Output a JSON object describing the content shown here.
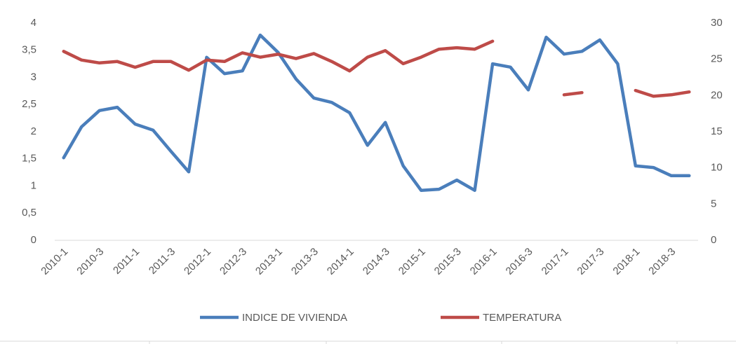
{
  "chart_data": {
    "type": "line",
    "categories": [
      "2010-1",
      null,
      "2010-3",
      null,
      "2011-1",
      null,
      "2011-3",
      null,
      "2012-1",
      null,
      "2012-3",
      null,
      "2013-1",
      null,
      "2013-3",
      null,
      "2014-1",
      null,
      "2014-3",
      null,
      "2015-1",
      null,
      "2015-3",
      null,
      "2016-1",
      null,
      "2016-3",
      null,
      "2017-1",
      null,
      "2017-3",
      null,
      "2018-1",
      null,
      "2018-3",
      null
    ],
    "series": [
      {
        "name": "INDICE DE VIVIENDA",
        "color": "#4a7ebb",
        "axis": "y",
        "values": [
          1.52,
          2.09,
          2.39,
          2.45,
          2.14,
          2.03,
          1.64,
          1.26,
          3.37,
          3.07,
          3.12,
          3.78,
          3.46,
          2.97,
          2.62,
          2.54,
          2.35,
          1.75,
          2.17,
          1.37,
          0.92,
          0.94,
          1.11,
          0.92,
          3.25,
          3.19,
          2.77,
          3.74,
          3.43,
          3.48,
          3.69,
          3.25,
          1.37,
          1.34,
          1.19,
          1.19
        ]
      },
      {
        "name": "TEMPERATURA",
        "color": "#be4b48",
        "axis": "y2",
        "values": [
          26.1,
          24.9,
          24.5,
          24.7,
          23.9,
          24.7,
          24.7,
          23.5,
          24.9,
          24.7,
          25.9,
          25.3,
          25.7,
          25.1,
          25.8,
          24.7,
          23.4,
          25.3,
          26.2,
          24.4,
          25.3,
          26.4,
          26.6,
          26.4,
          27.5,
          null,
          null,
          null,
          20.1,
          20.4,
          null,
          null,
          20.7,
          19.9,
          20.1,
          20.5
        ]
      }
    ],
    "ylim": [
      0,
      4
    ],
    "yticks": [
      0,
      {
        "value": 0.5,
        "label": "0,5"
      },
      1,
      {
        "value": 1.5,
        "label": "1,5"
      },
      2,
      {
        "value": 2.5,
        "label": "2,5"
      },
      3,
      {
        "value": 3.5,
        "label": "3,5"
      },
      4
    ],
    "y2lim": [
      0,
      30
    ],
    "y2ticks": [
      0,
      5,
      10,
      15,
      20,
      25,
      30
    ],
    "grid": false,
    "legend": "bottom"
  }
}
